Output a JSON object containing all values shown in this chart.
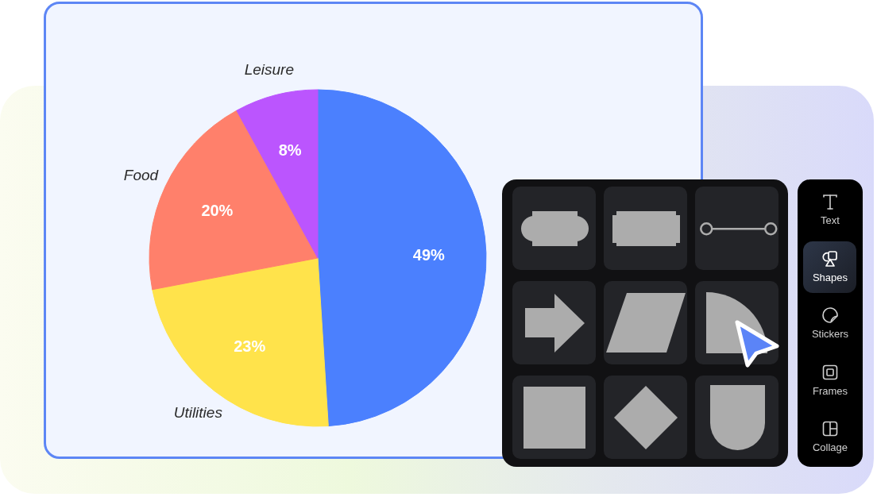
{
  "chart_data": [
    {
      "type": "pie",
      "categories": [
        null,
        "Utilities",
        "Food",
        "Leisure"
      ],
      "values": [
        49,
        23,
        20,
        8
      ],
      "colors": [
        "#4b80fe",
        "#ffe34b",
        "#ff806b",
        "#bb55fe"
      ],
      "value_labels": [
        "49%",
        "23%",
        "20%",
        "8%"
      ]
    },
    {
      "type": "other",
      "annotations": [
        "Text",
        "Shapes",
        "Stickers",
        "Frames",
        "Collage"
      ]
    }
  ]
}
